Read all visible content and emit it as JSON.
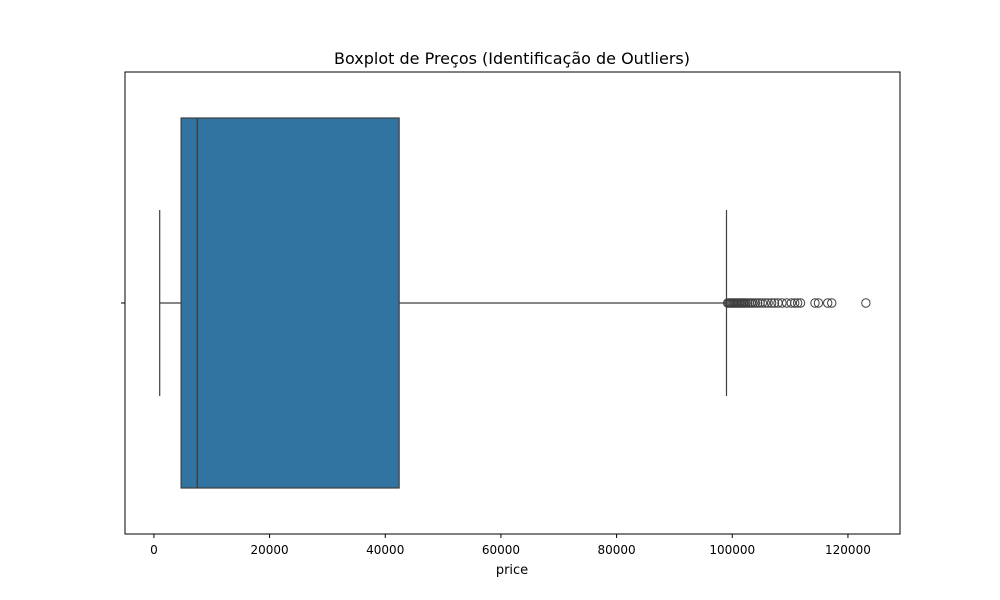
{
  "chart_data": {
    "type": "boxplot",
    "title": "Boxplot de Preços (Identificação de Outliers)",
    "xlabel": "price",
    "ylabel": "",
    "xlim": [
      -5000,
      129000
    ],
    "xticks": [
      0,
      20000,
      40000,
      60000,
      80000,
      100000,
      120000
    ],
    "xtick_labels": [
      "0",
      "20000",
      "40000",
      "60000",
      "80000",
      "100000",
      "120000"
    ],
    "grid": false,
    "box": {
      "whisker_low": 1000,
      "q1": 4700,
      "median": 7500,
      "q3": 42400,
      "whisker_high": 99000,
      "fill_color": "#3274a1",
      "line_color": "#3f3f3f"
    },
    "outliers": [
      99200,
      99400,
      99600,
      99800,
      100000,
      100200,
      100400,
      100600,
      100800,
      101000,
      101200,
      101400,
      101600,
      101800,
      102000,
      102200,
      102400,
      102700,
      103000,
      103300,
      103600,
      104000,
      104400,
      104800,
      105200,
      105700,
      106200,
      106800,
      107300,
      107900,
      108600,
      109400,
      110200,
      110800,
      111300,
      111800,
      114300,
      114900,
      116500,
      117200,
      123100
    ]
  }
}
